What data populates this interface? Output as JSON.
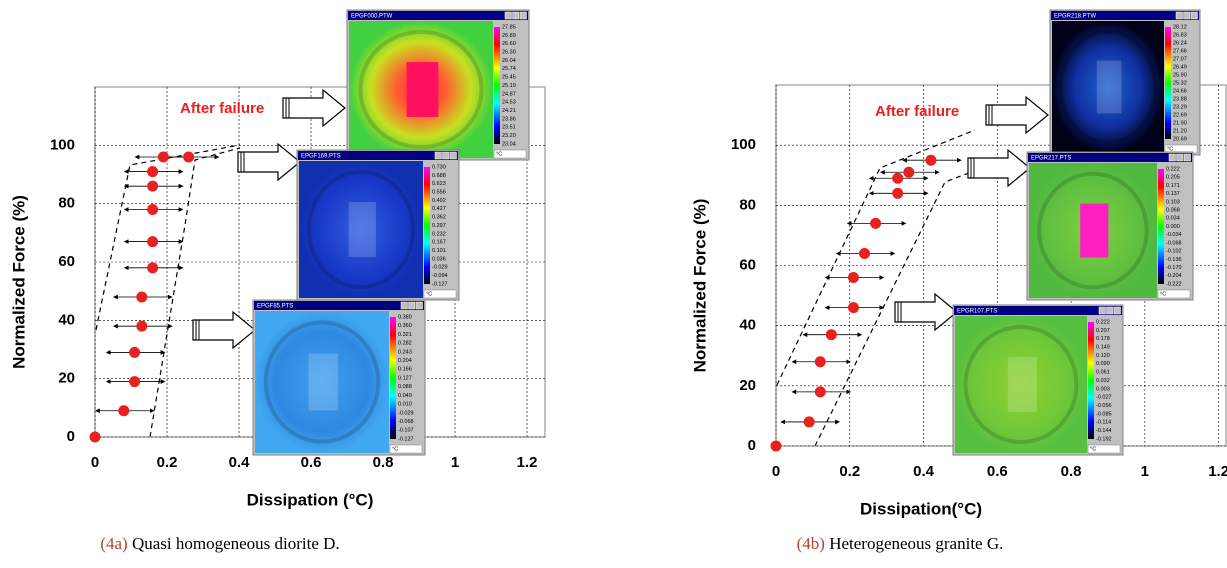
{
  "chart_data": [
    {
      "type": "scatter",
      "xlabel": "Dissipation (°C)",
      "ylabel": "Normalized Force (%)",
      "x": [
        0,
        0.08,
        0.11,
        0.11,
        0.13,
        0.13,
        0.16,
        0.16,
        0.16,
        0.16,
        0.16,
        0.19,
        0.26
      ],
      "values": [
        0,
        9,
        19,
        29,
        38,
        48,
        58,
        67,
        78,
        86,
        91,
        96,
        96
      ],
      "color": "#e8201f",
      "xlim": [
        0,
        1.25
      ],
      "ylim": [
        0,
        120
      ],
      "xticks": [
        0,
        0.2,
        0.4,
        0.6,
        0.8,
        1,
        1.2
      ],
      "yticks": [
        0,
        20,
        40,
        60,
        80,
        100
      ],
      "grid": true,
      "annotation": "After failure",
      "caption_label": "(4a)",
      "caption": "Quasi homogeneous diorite D.",
      "insets": [
        {
          "title": "EPGF000.PTW",
          "unit": "°C",
          "scale": [
            "27.85",
            "26.89",
            "26.60",
            "26.30",
            "26.04",
            "25.74",
            "25.45",
            "25.19",
            "24.87",
            "24.53",
            "24.21",
            "23.86",
            "23.51",
            "23.20",
            "23.04"
          ]
        },
        {
          "title": "EPGF169.PTS",
          "unit": "°C",
          "scale": [
            "0.730",
            "0.688",
            "0.623",
            "0.556",
            "0.492",
            "0.427",
            "0.362",
            "0.297",
            "0.232",
            "0.167",
            "0.101",
            "0.036",
            "-0.029",
            "-0.094",
            "-0.127"
          ]
        },
        {
          "title": "EPGF85.PTS",
          "unit": "°C",
          "scale": [
            "0.380",
            "0.360",
            "0.321",
            "0.282",
            "0.243",
            "0.204",
            "0.166",
            "0.127",
            "0.088",
            "0.049",
            "0.010",
            "-0.029",
            "-0.068",
            "-0.107",
            "-0.127"
          ]
        }
      ]
    },
    {
      "type": "scatter",
      "xlabel": "Dissipation(°C)",
      "ylabel": "Normalized Force (%)",
      "x": [
        0,
        0.09,
        0.12,
        0.12,
        0.15,
        0.21,
        0.21,
        0.24,
        0.27,
        0.33,
        0.33,
        0.36,
        0.42
      ],
      "values": [
        0,
        8,
        18,
        28,
        37,
        46,
        56,
        64,
        74,
        84,
        89,
        91,
        95
      ],
      "color": "#e8201f",
      "xlim": [
        0,
        1.22
      ],
      "ylim": [
        0,
        120
      ],
      "xticks": [
        0,
        0.2,
        0.4,
        0.6,
        0.8,
        1,
        1.2
      ],
      "yticks": [
        0,
        20,
        40,
        60,
        80,
        100
      ],
      "grid": true,
      "annotation": "After failure",
      "caption_label": "(4b)",
      "caption": "Heterogeneous granite G.",
      "insets": [
        {
          "title": "EPGR218.PTW",
          "unit": "°C",
          "scale": [
            "28.12",
            "26.83",
            "26.24",
            "27.66",
            "27.07",
            "26.49",
            "25.90",
            "25.32",
            "24.66",
            "23.88",
            "23.29",
            "22.69",
            "21.90",
            "21.20",
            "20.69"
          ]
        },
        {
          "title": "EPGR217.PTS",
          "unit": "°C",
          "scale": [
            "0.222",
            "0.205",
            "0.171",
            "0.137",
            "0.103",
            "0.068",
            "0.034",
            "0.000",
            "-0.034",
            "-0.068",
            "-0.102",
            "-0.136",
            "-0.170",
            "-0.204",
            "-0.222"
          ]
        },
        {
          "title": "EPGR107.PTS",
          "unit": "°C",
          "scale": [
            "0.222",
            "0.207",
            "0.178",
            "0.149",
            "0.120",
            "0.090",
            "0.061",
            "0.032",
            "0.003",
            "-0.027",
            "-0.056",
            "-0.085",
            "-0.114",
            "-0.144",
            "-0.192"
          ]
        }
      ]
    }
  ]
}
